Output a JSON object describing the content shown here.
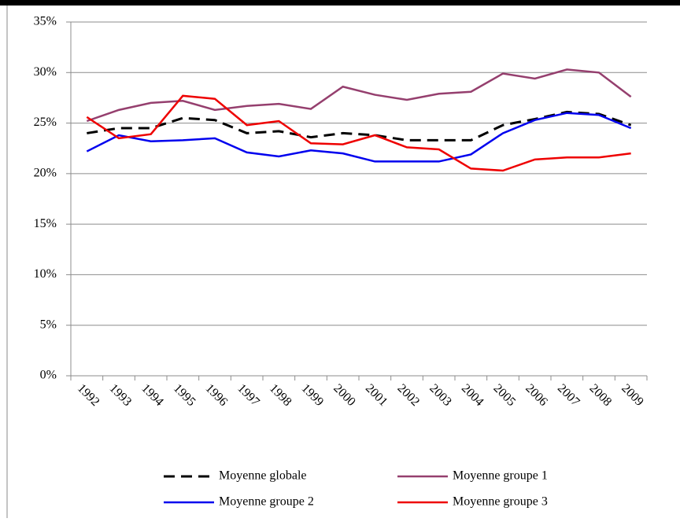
{
  "chart_data": {
    "type": "line",
    "categories": [
      "1992",
      "1993",
      "1994",
      "1995",
      "1996",
      "1997",
      "1998",
      "1999",
      "2000",
      "2001",
      "2002",
      "2003",
      "2004",
      "2005",
      "2006",
      "2007",
      "2008",
      "2009"
    ],
    "series": [
      {
        "name": "Moyenne globale",
        "color": "#000000",
        "dashed": true,
        "values": [
          24.0,
          24.5,
          24.5,
          25.5,
          25.3,
          24.0,
          24.2,
          23.6,
          24.0,
          23.8,
          23.3,
          23.3,
          23.3,
          24.8,
          25.4,
          26.1,
          25.9,
          24.8
        ]
      },
      {
        "name": "Moyenne groupe 1",
        "color": "#953f6e",
        "values": [
          25.2,
          26.3,
          27.0,
          27.2,
          26.3,
          26.7,
          26.9,
          26.4,
          28.6,
          27.8,
          27.3,
          27.9,
          28.1,
          29.9,
          29.4,
          30.3,
          30.0,
          27.6
        ]
      },
      {
        "name": "Moyenne groupe 2",
        "color": "#0000ee",
        "values": [
          22.2,
          23.8,
          23.2,
          23.3,
          23.5,
          22.1,
          21.7,
          22.3,
          22.0,
          21.2,
          21.2,
          21.2,
          21.9,
          24.0,
          25.3,
          26.0,
          25.8,
          24.5
        ]
      },
      {
        "name": "Moyenne groupe 3",
        "color": "#ee0000",
        "values": [
          25.6,
          23.5,
          23.9,
          27.7,
          27.4,
          24.8,
          25.2,
          23.0,
          22.9,
          23.8,
          22.6,
          22.4,
          20.5,
          20.3,
          21.4,
          21.6,
          21.6,
          22.0
        ]
      }
    ],
    "ylim": [
      0,
      35
    ],
    "yticks": [
      {
        "value": 0,
        "label": "0%"
      },
      {
        "value": 5,
        "label": "5%"
      },
      {
        "value": 10,
        "label": "10%"
      },
      {
        "value": 15,
        "label": "15%"
      },
      {
        "value": 20,
        "label": "20%"
      },
      {
        "value": 25,
        "label": "25%"
      },
      {
        "value": 30,
        "label": "30%"
      },
      {
        "value": 35,
        "label": "35%"
      }
    ],
    "grid": true,
    "legend": "bottom"
  }
}
